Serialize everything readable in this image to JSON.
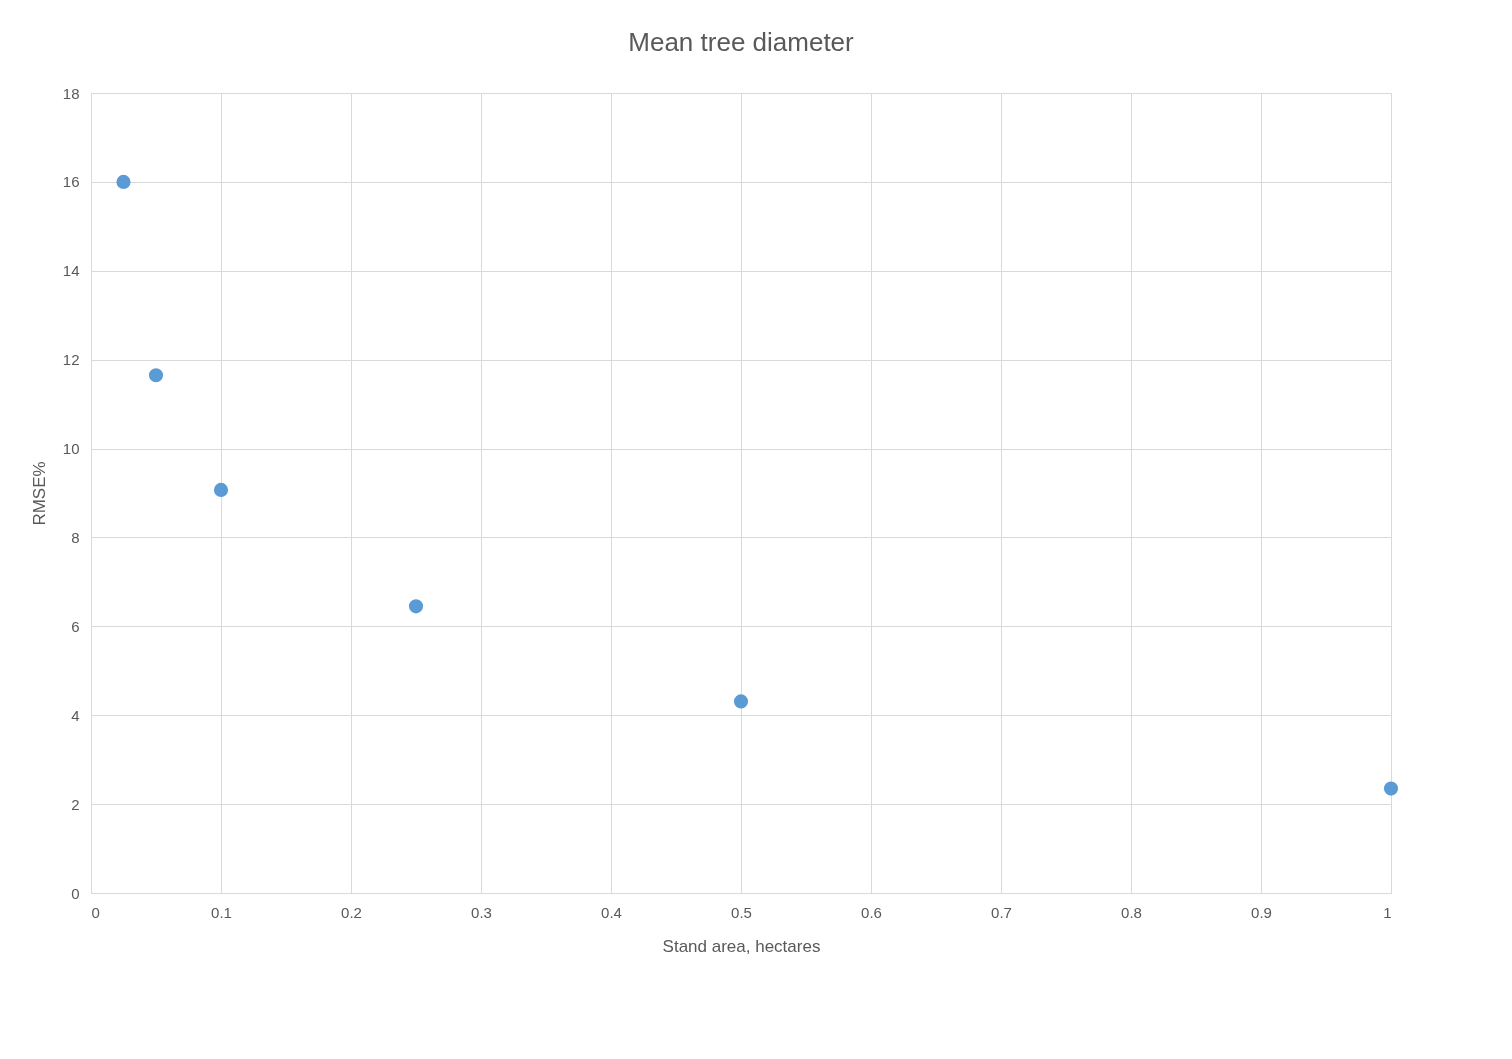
{
  "chart_data": {
    "type": "scatter",
    "title": "Mean tree diameter",
    "xlabel": "Stand area, hectares",
    "ylabel": "RMSE%",
    "x": [
      0.025,
      0.05,
      0.1,
      0.25,
      0.5,
      1
    ],
    "series": [
      {
        "color": "#5b9bd5",
        "values": [
          16.0,
          11.65,
          9.07,
          6.45,
          4.31,
          2.35
        ]
      }
    ],
    "xlim": [
      0,
      1
    ],
    "xticks": [
      0,
      0.1,
      0.2,
      0.3,
      0.4,
      0.5,
      0.6,
      0.7,
      0.8,
      0.9,
      1
    ],
    "ylim": [
      0,
      18
    ],
    "yticks": [
      0,
      2,
      4,
      6,
      8,
      10,
      12,
      14,
      16,
      18
    ],
    "grid": true,
    "legend": false,
    "marker": "circle"
  }
}
